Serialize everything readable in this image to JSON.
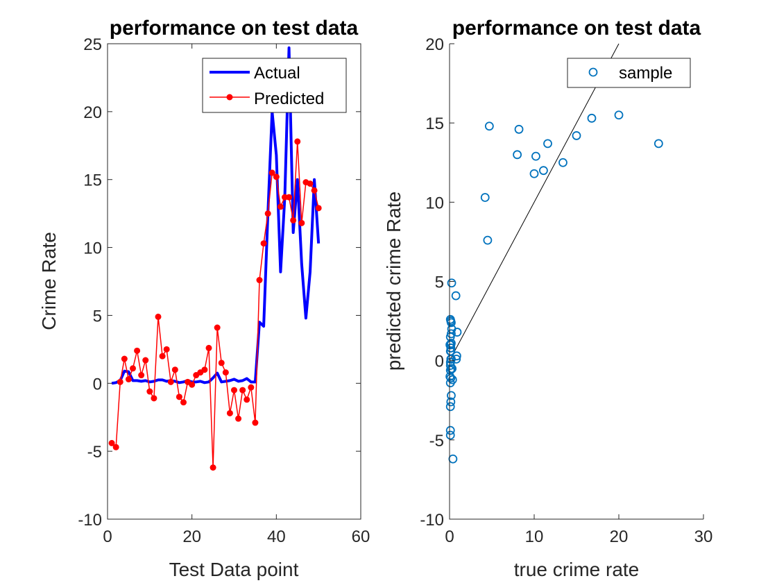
{
  "chart_data": [
    {
      "type": "line",
      "title": "performance on test data",
      "xlabel": "Test Data point",
      "ylabel": "Crime Rate",
      "xlim": [
        0,
        60
      ],
      "ylim": [
        -10,
        25
      ],
      "xticks": [
        "0",
        "20",
        "40",
        "60"
      ],
      "yticks": [
        "-10",
        "-5",
        "0",
        "5",
        "10",
        "15",
        "20",
        "25"
      ],
      "legend_position": "top-right",
      "x": [
        1,
        2,
        3,
        4,
        5,
        6,
        7,
        8,
        9,
        10,
        11,
        12,
        13,
        14,
        15,
        16,
        17,
        18,
        19,
        20,
        21,
        22,
        23,
        24,
        25,
        26,
        27,
        28,
        29,
        30,
        31,
        32,
        33,
        34,
        35,
        36,
        37,
        38,
        39,
        40,
        41,
        42,
        43,
        44,
        45,
        46,
        47,
        48,
        49,
        50
      ],
      "series": [
        {
          "name": "Actual",
          "color": "#0000ff",
          "style": "thick-line",
          "values": [
            0.0,
            0.05,
            0.2,
            0.9,
            0.85,
            0.2,
            0.2,
            0.15,
            0.2,
            0.1,
            0.15,
            0.25,
            0.25,
            0.15,
            0.2,
            0.15,
            0.05,
            0.1,
            0.2,
            0.1,
            0.1,
            0.15,
            0.05,
            0.1,
            0.4,
            0.75,
            0.1,
            0.15,
            0.2,
            0.3,
            0.15,
            0.2,
            0.35,
            0.1,
            0.1,
            4.5,
            4.2,
            12.5,
            20.0,
            16.8,
            8.2,
            13.7,
            24.7,
            11.1,
            15.0,
            8.8,
            4.8,
            8.2,
            15.0,
            10.3
          ]
        },
        {
          "name": "Predicted",
          "color": "#ff0000",
          "style": "line-with-dots",
          "values": [
            -4.4,
            -4.7,
            0.1,
            1.8,
            0.3,
            1.1,
            2.4,
            0.6,
            1.7,
            -0.6,
            -1.1,
            4.9,
            2.0,
            2.5,
            0.1,
            1.0,
            -1.0,
            -1.4,
            0.1,
            -0.1,
            0.6,
            0.8,
            1.0,
            2.6,
            -6.2,
            4.1,
            1.5,
            0.8,
            -2.2,
            -0.5,
            -2.6,
            -0.5,
            -1.2,
            -0.3,
            -2.9,
            7.6,
            10.3,
            12.5,
            15.5,
            15.2,
            13.0,
            13.7,
            13.7,
            12.0,
            17.8,
            11.8,
            14.8,
            14.7,
            14.2,
            12.9
          ]
        }
      ]
    },
    {
      "type": "scatter",
      "title": "performance on test data",
      "xlabel": "true crime rate",
      "ylabel": "predicted crime Rate",
      "xlim": [
        0,
        30
      ],
      "ylim": [
        -10,
        20
      ],
      "xticks": [
        "0",
        "10",
        "20",
        "30"
      ],
      "yticks": [
        "-10",
        "-5",
        "0",
        "5",
        "10",
        "15",
        "20"
      ],
      "legend_position": "top-right",
      "series": [
        {
          "name": "sample",
          "color": "#0072bd",
          "marker": "open-circle",
          "points": [
            [
              0.1,
              -4.4
            ],
            [
              0.1,
              -4.7
            ],
            [
              0.15,
              0.1
            ],
            [
              0.9,
              1.8
            ],
            [
              0.85,
              0.3
            ],
            [
              0.2,
              1.1
            ],
            [
              0.2,
              2.4
            ],
            [
              0.15,
              0.6
            ],
            [
              0.2,
              1.7
            ],
            [
              0.1,
              -0.6
            ],
            [
              0.15,
              -1.1
            ],
            [
              0.25,
              4.9
            ],
            [
              0.25,
              2.0
            ],
            [
              0.15,
              2.5
            ],
            [
              0.2,
              0.1
            ],
            [
              0.15,
              1.0
            ],
            [
              0.05,
              -1.0
            ],
            [
              0.1,
              -1.4
            ],
            [
              0.2,
              0.1
            ],
            [
              0.1,
              -0.1
            ],
            [
              0.1,
              0.6
            ],
            [
              0.15,
              0.8
            ],
            [
              0.05,
              1.0
            ],
            [
              0.1,
              2.6
            ],
            [
              0.4,
              -6.2
            ],
            [
              0.75,
              4.1
            ],
            [
              0.1,
              1.5
            ],
            [
              0.15,
              0.8
            ],
            [
              0.2,
              -2.2
            ],
            [
              0.3,
              -0.5
            ],
            [
              0.15,
              -2.6
            ],
            [
              0.2,
              -0.5
            ],
            [
              0.35,
              -1.2
            ],
            [
              0.1,
              -0.3
            ],
            [
              0.1,
              -2.9
            ],
            [
              4.5,
              7.6
            ],
            [
              4.2,
              10.3
            ],
            [
              8.0,
              13.0
            ],
            [
              20.0,
              15.5
            ],
            [
              10.0,
              11.8
            ],
            [
              8.2,
              14.6
            ],
            [
              11.1,
              12.0
            ],
            [
              24.7,
              13.7
            ],
            [
              13.4,
              12.5
            ],
            [
              4.7,
              14.8
            ],
            [
              10.2,
              12.9
            ],
            [
              15.0,
              14.2
            ],
            [
              16.8,
              15.3
            ],
            [
              11.6,
              13.7
            ],
            [
              0.8,
              0.1
            ]
          ]
        }
      ],
      "reference_line": {
        "x": [
          0,
          20
        ],
        "y": [
          0,
          20
        ],
        "color": "#000000"
      }
    }
  ]
}
